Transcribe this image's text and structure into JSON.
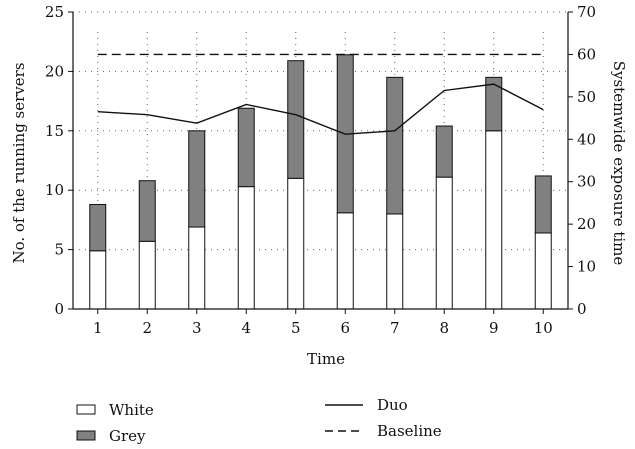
{
  "chart_data": {
    "type": "bar",
    "stacked": true,
    "categories": [
      "1",
      "2",
      "3",
      "4",
      "5",
      "6",
      "7",
      "8",
      "9",
      "10"
    ],
    "series": [
      {
        "name": "White",
        "axis": "left",
        "kind": "bar",
        "color": "#ffffff",
        "values": [
          4.9,
          5.7,
          6.9,
          10.3,
          11.0,
          8.1,
          8.0,
          11.1,
          15.0,
          6.4
        ]
      },
      {
        "name": "Grey",
        "axis": "left",
        "kind": "bar",
        "color": "#808080",
        "values": [
          3.9,
          5.1,
          8.1,
          6.6,
          9.9,
          13.3,
          11.5,
          4.3,
          4.5,
          4.8
        ]
      },
      {
        "name": "Duo",
        "axis": "right",
        "kind": "line",
        "style": "solid",
        "values": [
          46.5,
          45.8,
          43.8,
          48.2,
          45.8,
          41.2,
          42.0,
          51.5,
          53.0,
          47.0
        ]
      },
      {
        "name": "Baseline",
        "axis": "right",
        "kind": "line",
        "style": "dashed",
        "values": [
          60,
          60,
          60,
          60,
          60,
          60,
          60,
          60,
          60,
          60
        ]
      }
    ],
    "xlabel": "Time",
    "ylabel": "No. of the running servers",
    "y2label": "Systemwide exposure time",
    "ylim": [
      0,
      25
    ],
    "y2lim": [
      0,
      70
    ],
    "yticks": [
      "0",
      "5",
      "10",
      "15",
      "20",
      "25"
    ],
    "y2ticks": [
      "0",
      "10",
      "20",
      "30",
      "40",
      "50",
      "60",
      "70"
    ],
    "grid": "dotted-horizontal",
    "legend_position": "bottom"
  }
}
